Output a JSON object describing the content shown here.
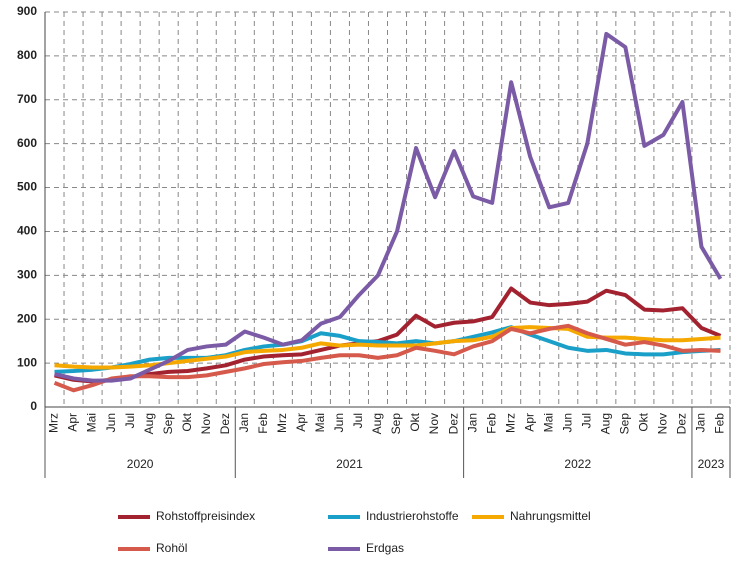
{
  "chart_data": {
    "type": "line",
    "categories": [
      "Mrz",
      "Apr",
      "Mai",
      "Jun",
      "Jul",
      "Aug",
      "Sep",
      "Okt",
      "Nov",
      "Dez",
      "Jan",
      "Feb",
      "Mrz",
      "Apr",
      "Mai",
      "Jun",
      "Jul",
      "Aug",
      "Sep",
      "Okt",
      "Nov",
      "Dez",
      "Jan",
      "Feb",
      "Mrz",
      "Apr",
      "Mai",
      "Jun",
      "Jul",
      "Aug",
      "Sep",
      "Okt",
      "Nov",
      "Dez",
      "Jan",
      "Feb"
    ],
    "years": [
      "2020",
      "2021",
      "2022",
      "2023"
    ],
    "ylim": [
      0,
      900
    ],
    "yticks": [
      0,
      100,
      200,
      300,
      400,
      500,
      600,
      700,
      800,
      900
    ],
    "grid": true,
    "series": [
      {
        "name": "Rohstoffpreisindex",
        "color": "#a3222f",
        "values": [
          72,
          62,
          58,
          62,
          68,
          75,
          80,
          82,
          88,
          95,
          108,
          115,
          118,
          120,
          130,
          140,
          145,
          150,
          165,
          208,
          183,
          192,
          195,
          205,
          270,
          238,
          232,
          235,
          240,
          265,
          255,
          222,
          220,
          225,
          180,
          162
        ]
      },
      {
        "name": "Industrierohstoffe",
        "color": "#1aa0c8",
        "values": [
          80,
          82,
          85,
          90,
          98,
          108,
          112,
          112,
          112,
          118,
          130,
          138,
          142,
          150,
          168,
          162,
          150,
          148,
          145,
          150,
          145,
          150,
          160,
          170,
          182,
          165,
          150,
          135,
          128,
          130,
          122,
          120,
          120,
          125,
          128,
          130
        ]
      },
      {
        "name": "Nahrungsmittel",
        "color": "#f5a800",
        "values": [
          95,
          92,
          90,
          90,
          92,
          95,
          100,
          105,
          110,
          115,
          125,
          128,
          130,
          135,
          145,
          140,
          142,
          140,
          140,
          140,
          145,
          150,
          152,
          160,
          180,
          182,
          180,
          178,
          160,
          158,
          158,
          155,
          152,
          152,
          155,
          158
        ]
      },
      {
        "name": "Rohöl",
        "color": "#d65a4b",
        "values": [
          55,
          38,
          50,
          65,
          70,
          70,
          68,
          68,
          72,
          80,
          88,
          98,
          102,
          105,
          112,
          118,
          118,
          112,
          118,
          135,
          128,
          120,
          138,
          150,
          178,
          168,
          178,
          185,
          168,
          155,
          142,
          148,
          140,
          128,
          130,
          128
        ]
      },
      {
        "name": "Erdgas",
        "color": "#7b5ba6",
        "values": [
          75,
          65,
          60,
          60,
          65,
          85,
          105,
          130,
          138,
          142,
          172,
          158,
          142,
          152,
          190,
          205,
          255,
          300,
          400,
          590,
          478,
          583,
          480,
          465,
          740,
          570,
          455,
          465,
          600,
          850,
          820,
          595,
          620,
          695,
          365,
          292
        ]
      }
    ]
  }
}
